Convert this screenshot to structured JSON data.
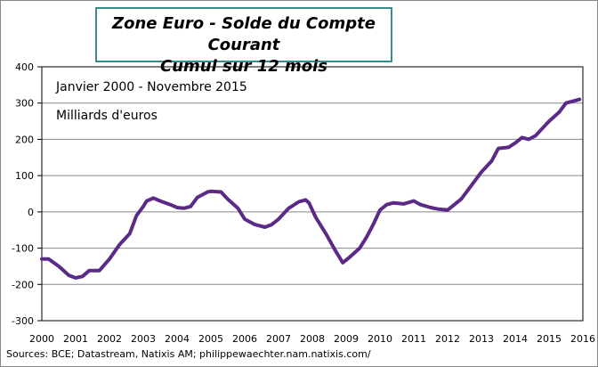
{
  "chart_data": {
    "type": "line",
    "title": "Zone Euro - Solde du Compte Courant",
    "subtitle": "Cumul sur 12 mois",
    "annotations": [
      "Janvier 2000 - Novembre 2015",
      "Milliards  d'euros"
    ],
    "xlabel": "",
    "ylabel": "",
    "xlim": [
      2000,
      2016
    ],
    "ylim": [
      -300,
      400
    ],
    "x_ticks": [
      "2000",
      "2001",
      "2002",
      "2003",
      "2004",
      "2005",
      "2006",
      "2007",
      "2008",
      "2009",
      "2010",
      "2011",
      "2012",
      "2013",
      "2014",
      "2015",
      "2016"
    ],
    "y_ticks": [
      "400",
      "300",
      "200",
      "100",
      "0",
      "-100",
      "-200",
      "-300"
    ],
    "grid": "horizontal",
    "line_color": "#5b2a86",
    "x": [
      2000.0,
      2000.2,
      2000.5,
      2000.8,
      2001.0,
      2001.2,
      2001.4,
      2001.7,
      2002.0,
      2002.3,
      2002.6,
      2002.8,
      2003.0,
      2003.1,
      2003.3,
      2003.5,
      2003.8,
      2004.0,
      2004.2,
      2004.4,
      2004.6,
      2004.9,
      2005.0,
      2005.3,
      2005.5,
      2005.8,
      2006.0,
      2006.3,
      2006.6,
      2006.8,
      2007.0,
      2007.3,
      2007.6,
      2007.8,
      2007.9,
      2008.1,
      2008.4,
      2008.7,
      2008.9,
      2009.1,
      2009.4,
      2009.6,
      2009.8,
      2010.0,
      2010.2,
      2010.4,
      2010.7,
      2011.0,
      2011.2,
      2011.5,
      2011.7,
      2012.0,
      2012.2,
      2012.4,
      2012.6,
      2012.8,
      2013.0,
      2013.3,
      2013.5,
      2013.8,
      2014.0,
      2014.2,
      2014.4,
      2014.6,
      2014.8,
      2015.0,
      2015.3,
      2015.5,
      2015.7,
      2015.9
    ],
    "values": [
      -130,
      -130,
      -150,
      -175,
      -182,
      -178,
      -162,
      -162,
      -130,
      -90,
      -60,
      -10,
      15,
      30,
      38,
      30,
      20,
      12,
      10,
      15,
      40,
      55,
      57,
      55,
      35,
      10,
      -20,
      -35,
      -42,
      -35,
      -20,
      10,
      28,
      33,
      25,
      -15,
      -60,
      -110,
      -140,
      -125,
      -100,
      -70,
      -35,
      5,
      20,
      25,
      22,
      30,
      20,
      12,
      8,
      5,
      20,
      35,
      60,
      85,
      110,
      140,
      175,
      178,
      190,
      205,
      200,
      210,
      230,
      250,
      275,
      300,
      305,
      310
    ]
  },
  "footer": {
    "source": "Sources: BCE; Datastream, Natixis AM; philippewaechter.nam.natixis.com/"
  }
}
